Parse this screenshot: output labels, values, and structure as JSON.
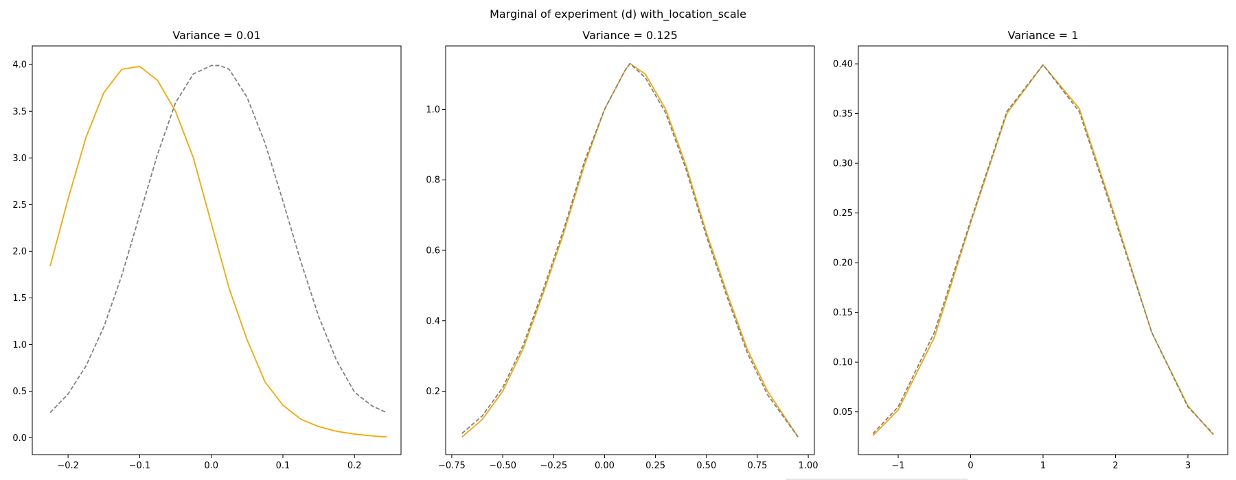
{
  "figure": {
    "suptitle": "Marginal of experiment (d) with_location_scale",
    "colors": {
      "fitted": "#ffa500",
      "reference": "#808080"
    }
  },
  "chart_data": [
    {
      "type": "line",
      "title": "Variance = 0.01",
      "xlabel": "",
      "ylabel": "",
      "xlim": [
        -0.25,
        0.265
      ],
      "ylim": [
        -0.18,
        4.2
      ],
      "xticks": [
        -0.2,
        -0.1,
        0.0,
        0.1,
        0.2
      ],
      "xtick_labels": [
        "−0.2",
        "−0.1",
        "0.0",
        "0.1",
        "0.2"
      ],
      "yticks": [
        0.0,
        0.5,
        1.0,
        1.5,
        2.0,
        2.5,
        3.0,
        3.5,
        4.0
      ],
      "ytick_labels": [
        "0.0",
        "0.5",
        "1.0",
        "1.5",
        "2.0",
        "2.5",
        "3.0",
        "3.5",
        "4.0"
      ],
      "grid": false,
      "series": [
        {
          "style": "solid",
          "color": "#ffa500",
          "x": [
            -0.225,
            -0.2,
            -0.175,
            -0.15,
            -0.125,
            -0.1,
            -0.075,
            -0.05,
            -0.025,
            0.0,
            0.025,
            0.05,
            0.075,
            0.1,
            0.125,
            0.15,
            0.175,
            0.2,
            0.225,
            0.245
          ],
          "y": [
            1.84,
            2.56,
            3.22,
            3.7,
            3.95,
            3.98,
            3.83,
            3.5,
            3.0,
            2.3,
            1.6,
            1.05,
            0.6,
            0.35,
            0.2,
            0.12,
            0.07,
            0.04,
            0.02,
            0.01
          ]
        },
        {
          "style": "dashed",
          "color": "#808080",
          "x": [
            -0.225,
            -0.2,
            -0.175,
            -0.15,
            -0.125,
            -0.1,
            -0.075,
            -0.05,
            -0.025,
            0.0,
            0.012,
            0.025,
            0.05,
            0.075,
            0.1,
            0.125,
            0.15,
            0.175,
            0.2,
            0.225,
            0.245
          ],
          "y": [
            0.27,
            0.47,
            0.77,
            1.19,
            1.74,
            2.39,
            3.04,
            3.59,
            3.9,
            3.99,
            3.99,
            3.95,
            3.65,
            3.16,
            2.54,
            1.89,
            1.3,
            0.83,
            0.49,
            0.34,
            0.27
          ]
        }
      ]
    },
    {
      "type": "line",
      "title": "Variance = 0.125",
      "xlabel": "",
      "ylabel": "",
      "xlim": [
        -0.78,
        1.03
      ],
      "ylim": [
        0.02,
        1.18
      ],
      "xticks": [
        -0.75,
        -0.5,
        -0.25,
        0.0,
        0.25,
        0.5,
        0.75,
        1.0
      ],
      "xtick_labels": [
        "−0.75",
        "−0.50",
        "−0.25",
        "0.00",
        "0.25",
        "0.50",
        "0.75",
        "1.00"
      ],
      "yticks": [
        0.2,
        0.4,
        0.6,
        0.8,
        1.0
      ],
      "ytick_labels": [
        "0.2",
        "0.4",
        "0.6",
        "0.8",
        "1.0"
      ],
      "grid": false,
      "series": [
        {
          "style": "solid",
          "color": "#ffa500",
          "x": [
            -0.7,
            -0.6,
            -0.5,
            -0.4,
            -0.3,
            -0.2,
            -0.1,
            0.0,
            0.1,
            0.125,
            0.2,
            0.3,
            0.4,
            0.5,
            0.6,
            0.7,
            0.8,
            0.95
          ],
          "y": [
            0.07,
            0.12,
            0.2,
            0.32,
            0.48,
            0.65,
            0.84,
            1.0,
            1.11,
            1.13,
            1.1,
            1.0,
            0.84,
            0.65,
            0.48,
            0.32,
            0.2,
            0.07
          ]
        },
        {
          "style": "dashed",
          "color": "#808080",
          "x": [
            -0.7,
            -0.6,
            -0.5,
            -0.4,
            -0.3,
            -0.2,
            -0.1,
            0.0,
            0.1,
            0.125,
            0.2,
            0.3,
            0.4,
            0.5,
            0.6,
            0.7,
            0.8,
            0.95
          ],
          "y": [
            0.08,
            0.13,
            0.21,
            0.33,
            0.49,
            0.66,
            0.85,
            1.0,
            1.11,
            1.13,
            1.09,
            0.99,
            0.83,
            0.64,
            0.47,
            0.31,
            0.19,
            0.07
          ]
        }
      ]
    },
    {
      "type": "line",
      "title": "Variance = 1",
      "xlabel": "",
      "ylabel": "",
      "xlim": [
        -1.55,
        3.55
      ],
      "ylim": [
        0.007,
        0.418
      ],
      "xticks": [
        -1,
        0,
        1,
        2,
        3
      ],
      "xtick_labels": [
        "−1",
        "0",
        "1",
        "2",
        "3"
      ],
      "yticks": [
        0.05,
        0.1,
        0.15,
        0.2,
        0.25,
        0.3,
        0.35,
        0.4
      ],
      "ytick_labels": [
        "0.05",
        "0.10",
        "0.15",
        "0.20",
        "0.25",
        "0.30",
        "0.35",
        "0.40"
      ],
      "grid": false,
      "series": [
        {
          "style": "solid",
          "color": "#ffa500",
          "x": [
            -1.35,
            -1.0,
            -0.5,
            0.0,
            0.5,
            1.0,
            1.5,
            2.0,
            2.5,
            3.0,
            3.35
          ],
          "y": [
            0.026,
            0.052,
            0.125,
            0.24,
            0.35,
            0.399,
            0.355,
            0.245,
            0.13,
            0.056,
            0.027
          ]
        },
        {
          "style": "dashed",
          "color": "#808080",
          "x": [
            -1.35,
            -1.0,
            -0.5,
            0.0,
            0.5,
            1.0,
            1.5,
            2.0,
            2.5,
            3.0,
            3.35
          ],
          "y": [
            0.028,
            0.055,
            0.13,
            0.242,
            0.352,
            0.399,
            0.352,
            0.242,
            0.13,
            0.055,
            0.028
          ]
        }
      ]
    }
  ]
}
